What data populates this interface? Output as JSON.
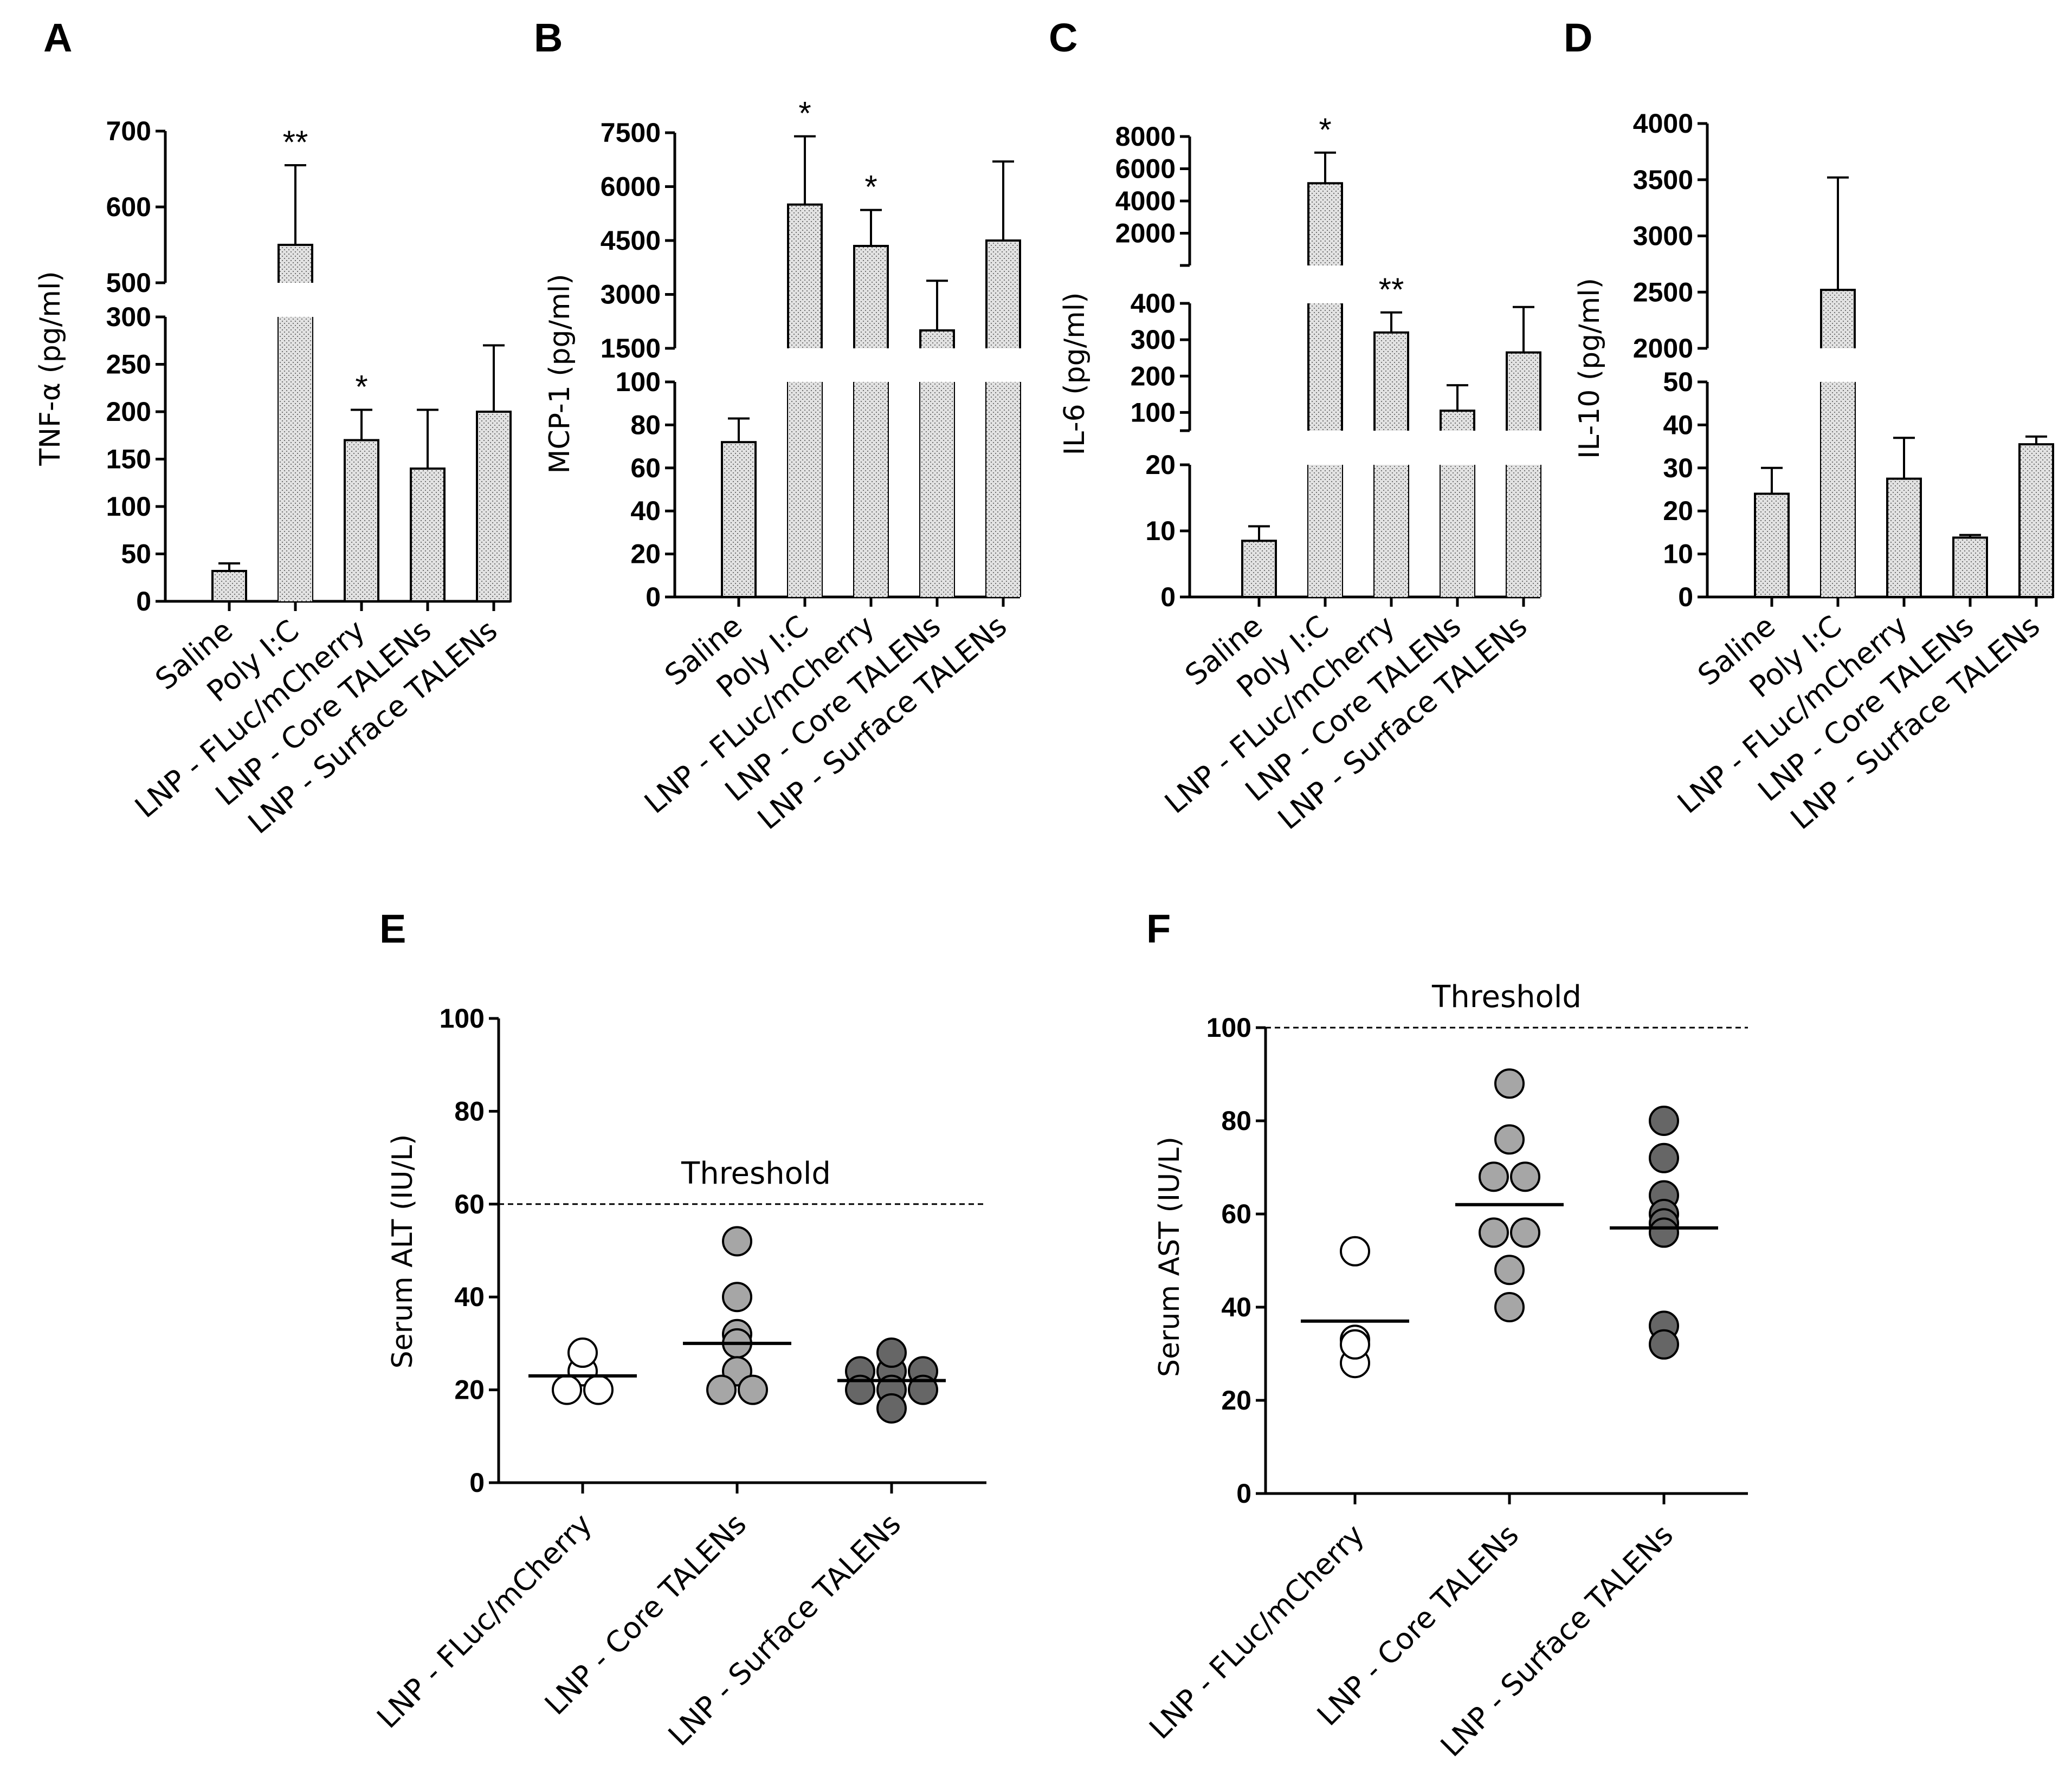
{
  "chart_data": [
    {
      "id": "A",
      "type": "bar",
      "panel_label": "A",
      "ylabel": "TNF-α (pg/ml)",
      "categories": [
        "Saline",
        "Poly I:C",
        "LNP - FLuc/mCherry",
        "LNP - Core TALENs",
        "LNP - Surface TALENs"
      ],
      "values": [
        32,
        550,
        170,
        140,
        200
      ],
      "errors": [
        8,
        105,
        32,
        62,
        70
      ],
      "significance": [
        "",
        "**",
        "*",
        "",
        ""
      ],
      "axis_segments": [
        {
          "range": [
            0,
            300
          ],
          "ticks": [
            0,
            50,
            100,
            150,
            200,
            250,
            300
          ]
        },
        {
          "range": [
            500,
            700
          ],
          "ticks": [
            500,
            600,
            700
          ]
        }
      ]
    },
    {
      "id": "B",
      "type": "bar",
      "panel_label": "B",
      "ylabel": "MCP-1 (pg/ml)",
      "categories": [
        "Saline",
        "Poly I:C",
        "LNP - FLuc/mCherry",
        "LNP - Core TALENs",
        "LNP - Surface TALENs"
      ],
      "values": [
        72,
        5500,
        4350,
        2000,
        4500
      ],
      "errors": [
        11,
        1900,
        1000,
        1380,
        2200
      ],
      "significance": [
        "",
        "*",
        "*",
        "",
        ""
      ],
      "axis_segments": [
        {
          "range": [
            0,
            100
          ],
          "ticks": [
            0,
            20,
            40,
            60,
            80,
            100
          ]
        },
        {
          "range": [
            1500,
            7500
          ],
          "ticks": [
            1500,
            3000,
            4500,
            6000,
            7500
          ]
        }
      ]
    },
    {
      "id": "C",
      "type": "bar",
      "panel_label": "C",
      "ylabel": "IL-6 (pg/ml)",
      "categories": [
        "Saline",
        "Poly I:C",
        "LNP - FLuc/mCherry",
        "LNP - Core TALENs",
        "LNP - Surface TALENs"
      ],
      "values": [
        8.5,
        5100,
        320,
        105,
        265
      ],
      "errors": [
        2.2,
        1900,
        55,
        70,
        125
      ],
      "significance": [
        "",
        "*",
        "**",
        "",
        ""
      ],
      "axis_segments": [
        {
          "range": [
            0,
            20
          ],
          "ticks": [
            0,
            10,
            20
          ]
        },
        {
          "range": [
            50,
            400
          ],
          "ticks": [
            100,
            200,
            300,
            400
          ]
        },
        {
          "range": [
            0,
            8000
          ],
          "ticks": [
            2000,
            4000,
            6000,
            8000
          ]
        }
      ]
    },
    {
      "id": "D",
      "type": "bar",
      "panel_label": "D",
      "ylabel": "IL-10 (pg/ml)",
      "categories": [
        "Saline",
        "Poly I:C",
        "LNP - FLuc/mCherry",
        "LNP - Core TALENs",
        "LNP - Surface TALENs"
      ],
      "values": [
        24,
        2520,
        27.5,
        13.8,
        35.5
      ],
      "errors": [
        6,
        1000,
        9.5,
        0.6,
        1.8
      ],
      "significance": [
        "",
        "",
        "",
        "",
        ""
      ],
      "axis_segments": [
        {
          "range": [
            0,
            50
          ],
          "ticks": [
            0,
            10,
            20,
            30,
            40,
            50
          ]
        },
        {
          "range": [
            2000,
            4000
          ],
          "ticks": [
            2000,
            2500,
            3000,
            3500,
            4000
          ]
        }
      ]
    },
    {
      "id": "E",
      "type": "scatter",
      "panel_label": "E",
      "ylabel": "Serum ALT (IU/L)",
      "ylim": [
        0,
        100
      ],
      "yticks": [
        0,
        20,
        40,
        60,
        80,
        100
      ],
      "threshold": {
        "value": 60,
        "label": "Threshold"
      },
      "categories": [
        "LNP - FLuc/mCherry",
        "LNP - Core TALENs",
        "LNP - Surface TALENs"
      ],
      "series": [
        {
          "name": "LNP - FLuc/mCherry",
          "color": "#ffffff",
          "mean": 23,
          "points": [
            24,
            28,
            20,
            20
          ]
        },
        {
          "name": "LNP - Core TALENs",
          "color": "#a6a6a6",
          "mean": 30,
          "points": [
            52,
            40,
            32,
            30,
            24,
            20,
            20
          ]
        },
        {
          "name": "LNP - Surface TALENs",
          "color": "#666666",
          "mean": 22,
          "points": [
            24,
            24,
            24,
            28,
            20,
            20,
            20,
            16
          ]
        }
      ]
    },
    {
      "id": "F",
      "type": "scatter",
      "panel_label": "F",
      "ylabel": "Serum AST (IU/L)",
      "ylim": [
        0,
        100
      ],
      "yticks": [
        0,
        20,
        40,
        60,
        80,
        100
      ],
      "threshold": {
        "value": 100,
        "label": "Threshold"
      },
      "categories": [
        "LNP - FLuc/mCherry",
        "LNP - Core TALENs",
        "LNP - Surface TALENs"
      ],
      "series": [
        {
          "name": "LNP - FLuc/mCherry",
          "color": "#ffffff",
          "mean": 37,
          "points": [
            52,
            33,
            28,
            32
          ]
        },
        {
          "name": "LNP - Core TALENs",
          "color": "#a6a6a6",
          "mean": 62,
          "points": [
            88,
            76,
            68,
            68,
            56,
            56,
            48,
            40
          ]
        },
        {
          "name": "LNP - Surface TALENs",
          "color": "#666666",
          "mean": 57,
          "points": [
            80,
            72,
            64,
            60,
            58,
            56,
            36,
            32
          ]
        }
      ]
    }
  ]
}
